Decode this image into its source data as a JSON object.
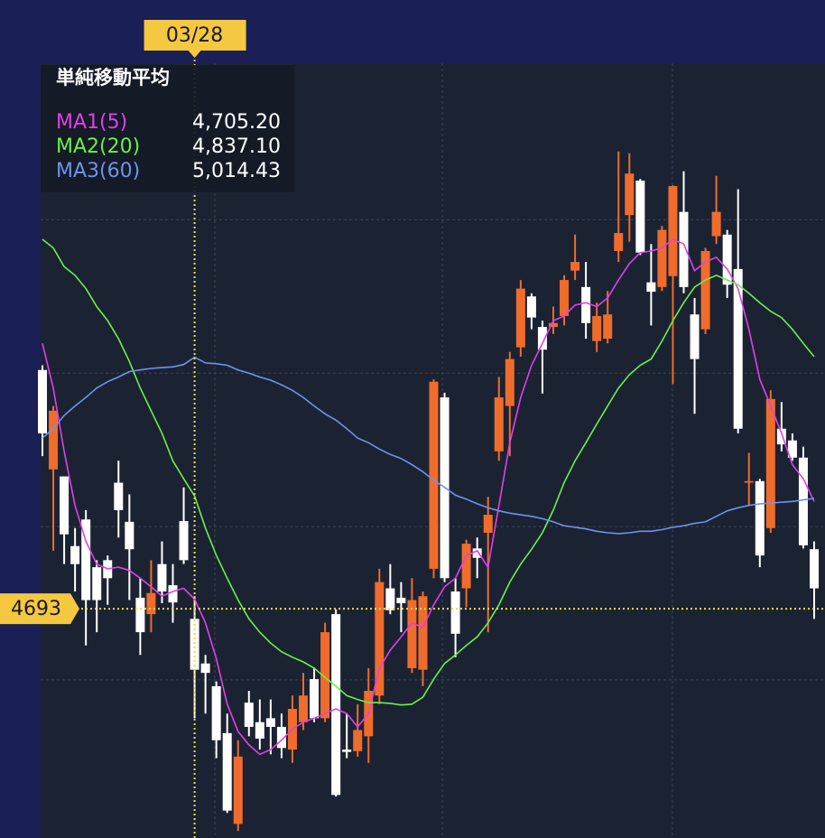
{
  "chart_data": {
    "type": "candlestick",
    "panel_title": "単純移動平均",
    "categories": [
      null,
      null,
      null,
      null,
      null,
      null,
      null,
      null,
      null,
      null,
      null,
      null,
      null,
      null,
      "03/28",
      null,
      null,
      null,
      null,
      null,
      null,
      null,
      null,
      null,
      null,
      null,
      null,
      null,
      null,
      null,
      null,
      null,
      null,
      null,
      null,
      null,
      null,
      null,
      null,
      null,
      null,
      null,
      null,
      null,
      null,
      null,
      null,
      null,
      null,
      null,
      null,
      null,
      null,
      null,
      null,
      null,
      null,
      null,
      null,
      null,
      null,
      null,
      null,
      null,
      null,
      null,
      null,
      null,
      null,
      null,
      null,
      null
    ],
    "open": [
      4998,
      4871,
      4862,
      4773,
      4807,
      4746,
      4755,
      4854,
      4804,
      4707,
      4686,
      4750,
      4723,
      4805,
      4680,
      4623,
      4594,
      4534,
      4418,
      4573,
      4548,
      4553,
      4542,
      4513,
      4548,
      4603,
      4553,
      4686,
      4513,
      4511,
      4530,
      4582,
      4719,
      4707,
      4617,
      4615,
      4744,
      4963,
      4715,
      4719,
      4770,
      4790,
      4894,
      4952,
      5027,
      5092,
      5053,
      5053,
      5067,
      5125,
      5104,
      5035,
      5038,
      5150,
      5196,
      5240,
      5110,
      5104,
      5118,
      5200,
      5069,
      5050,
      5169,
      5171,
      5127,
      4854,
      4856,
      4796,
      4923,
      4908,
      4886,
      4769
    ],
    "high": [
      5004,
      4952,
      4862,
      4796,
      4819,
      4755,
      4761,
      4882,
      4839,
      4732,
      4755,
      4779,
      4750,
      4848,
      4709,
      4634,
      4600,
      4559,
      4525,
      4588,
      4577,
      4577,
      4559,
      4582,
      4611,
      4617,
      4675,
      4692,
      4559,
      4571,
      4617,
      4744,
      4750,
      4727,
      4732,
      4715,
      4986,
      4969,
      4732,
      4781,
      4784,
      4836,
      4989,
      5021,
      5113,
      5096,
      5061,
      5079,
      5119,
      5171,
      5136,
      5084,
      5099,
      5277,
      5275,
      5242,
      5159,
      5182,
      5234,
      5252,
      5090,
      5154,
      5246,
      5177,
      5229,
      4892,
      4859,
      4972,
      4957,
      4917,
      4900,
      4779
    ],
    "low": [
      4888,
      4767,
      4750,
      4715,
      4646,
      4663,
      4698,
      4784,
      4704,
      4634,
      4663,
      4700,
      4675,
      4750,
      4553,
      4559,
      4502,
      4432,
      4409,
      4530,
      4513,
      4507,
      4502,
      4496,
      4538,
      4548,
      4548,
      4453,
      4502,
      4504,
      4496,
      4571,
      4686,
      4663,
      4611,
      4594,
      4732,
      4727,
      4631,
      4695,
      4732,
      4663,
      4882,
      4888,
      5015,
      5050,
      4968,
      5044,
      5055,
      5113,
      5038,
      5021,
      5032,
      5136,
      5162,
      5145,
      5055,
      5099,
      4980,
      5096,
      4942,
      5044,
      5159,
      5090,
      4917,
      4825,
      4746,
      4790,
      4894,
      4882,
      4770,
      4680
    ],
    "close": [
      4917,
      4946,
      4788,
      4750,
      4704,
      4704,
      4732,
      4819,
      4769,
      4663,
      4713,
      4715,
      4701,
      4755,
      4615,
      4611,
      4525,
      4435,
      4504,
      4542,
      4527,
      4542,
      4515,
      4565,
      4582,
      4553,
      4663,
      4455,
      4510,
      4538,
      4588,
      4727,
      4691,
      4700,
      4704,
      4709,
      4983,
      4732,
      4661,
      4776,
      4758,
      4813,
      4963,
      5012,
      5102,
      5065,
      5024,
      5058,
      5113,
      5136,
      5058,
      5067,
      5069,
      5173,
      5249,
      5148,
      5098,
      5177,
      5233,
      5104,
      5012,
      5150,
      5200,
      5107,
      4923,
      4856,
      4761,
      4961,
      4903,
      4886,
      4774,
      4719
    ],
    "up_color": "#ef6c2c",
    "down_color": "#ffffff",
    "series": [
      {
        "name": "MA1(5)",
        "color": "#e040e8",
        "value_label": "4,705.20",
        "values": [
          5032,
          4975,
          4894,
          4825,
          4779,
          4750,
          4744,
          4746,
          4742,
          4732,
          4721,
          4709,
          4715,
          4719,
          4705.2,
          4675,
          4629,
          4571,
          4536,
          4519,
          4507,
          4513,
          4525,
          4539,
          4548,
          4553,
          4559,
          4565,
          4559,
          4542,
          4559,
          4617,
          4640,
          4657,
          4675,
          4669,
          4698,
          4721,
          4732,
          4761,
          4767,
          4746,
          4825,
          4905,
          4963,
          5004,
          5032,
          5061,
          5067,
          5081,
          5084,
          5079,
          5090,
          5113,
          5134,
          5148,
          5150,
          5154,
          5165,
          5159,
          5125,
          5136,
          5142,
          5127,
          5102,
          5050,
          4986,
          4952,
          4917,
          4877,
          4859,
          4830
        ]
      },
      {
        "name": "MA2(20)",
        "color": "#6cf046",
        "value_label": "4,837.10",
        "values": [
          5165,
          5154,
          5130,
          5119,
          5102,
          5079,
          5061,
          5038,
          5009,
          4975,
          4946,
          4917,
          4882,
          4859,
          4837.1,
          4796,
          4761,
          4732,
          4704,
          4680,
          4663,
          4649,
          4638,
          4631,
          4625,
          4617,
          4605,
          4594,
          4582,
          4577,
          4573,
          4573,
          4572,
          4570,
          4571,
          4580,
          4603,
          4623,
          4634,
          4646,
          4657,
          4675,
          4698,
          4727,
          4750,
          4769,
          4790,
          4819,
          4854,
          4882,
          4905,
          4929,
          4952,
          4975,
          4992,
          5004,
          5012,
          5035,
          5061,
          5084,
          5104,
          5113,
          5119,
          5113,
          5107,
          5096,
          5084,
          5073,
          5065,
          5050,
          5032,
          5015
        ]
      },
      {
        "name": "MA3(60)",
        "color": "#7092ec",
        "value_label": "5,014.43",
        "values": [
          4911,
          4923,
          4940,
          4952,
          4963,
          4975,
          4983,
          4989,
          4996,
          4998,
          5000,
          5001,
          5002,
          5005,
          5014.43,
          5007,
          5006,
          5004,
          4998,
          4994,
          4989,
          4985,
          4979,
          4972,
          4963,
          4952,
          4942,
          4934,
          4923,
          4911,
          4905,
          4897,
          4890,
          4885,
          4877,
          4868,
          4857,
          4848,
          4838,
          4833,
          4827,
          4822,
          4818,
          4815,
          4813,
          4811,
          4808,
          4804,
          4799,
          4797,
          4795,
          4792,
          4790,
          4789,
          4790,
          4792,
          4792,
          4794,
          4797,
          4799,
          4802,
          4804,
          4811,
          4818,
          4822,
          4825,
          4827,
          4828,
          4829,
          4830,
          4832,
          4834
        ]
      }
    ],
    "crosshair_price": 4693,
    "crosshair_color": "#e8dc50",
    "ylim": [
      4400,
      5390
    ],
    "ygrid": [
      4602,
      4798,
      4994,
      5190
    ]
  }
}
